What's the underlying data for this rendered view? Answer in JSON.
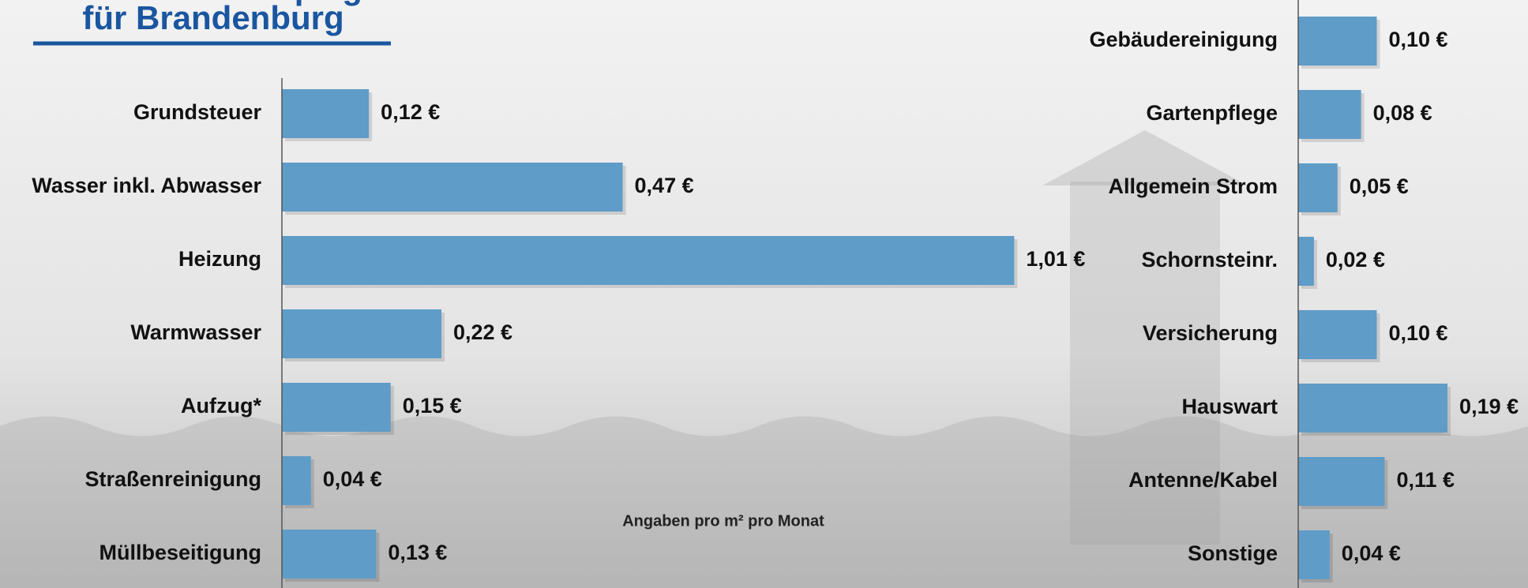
{
  "header": {
    "title": "Betriebskostenspiegel",
    "subtitle": "für Brandenburg"
  },
  "note": "Angaben pro m² pro Monat",
  "chart_data": [
    {
      "type": "hbar",
      "color": "#5f9cc8",
      "categories": [
        "Grundsteuer",
        "Wasser inkl. Abwasser",
        "Heizung",
        "Warmwasser",
        "Aufzug*",
        "Straßenreinigung",
        "Müllbeseitigung"
      ],
      "values": [
        0.12,
        0.47,
        1.01,
        0.22,
        0.15,
        0.04,
        0.13
      ],
      "value_labels": [
        "0,12 €",
        "0,47 €",
        "1,01 €",
        "0,22 €",
        "0,15 €",
        "0,04 €",
        "0,13 €"
      ],
      "xlim": [
        0,
        1.1
      ]
    },
    {
      "type": "hbar",
      "color": "#5f9cc8",
      "categories": [
        "Gebäudereinigung",
        "Gartenpflege",
        "Allgemein Strom",
        "Schornsteinr.",
        "Versicherung",
        "Hauswart",
        "Antenne/Kabel",
        "Sonstige"
      ],
      "values": [
        0.1,
        0.08,
        0.05,
        0.02,
        0.1,
        0.19,
        0.11,
        0.04
      ],
      "value_labels": [
        "0,10 €",
        "0,08 €",
        "0,05 €",
        "0,02 €",
        "0,10 €",
        "0,19 €",
        "0,11 €",
        "0,04 €"
      ],
      "xlim": [
        0,
        0.2
      ]
    }
  ]
}
